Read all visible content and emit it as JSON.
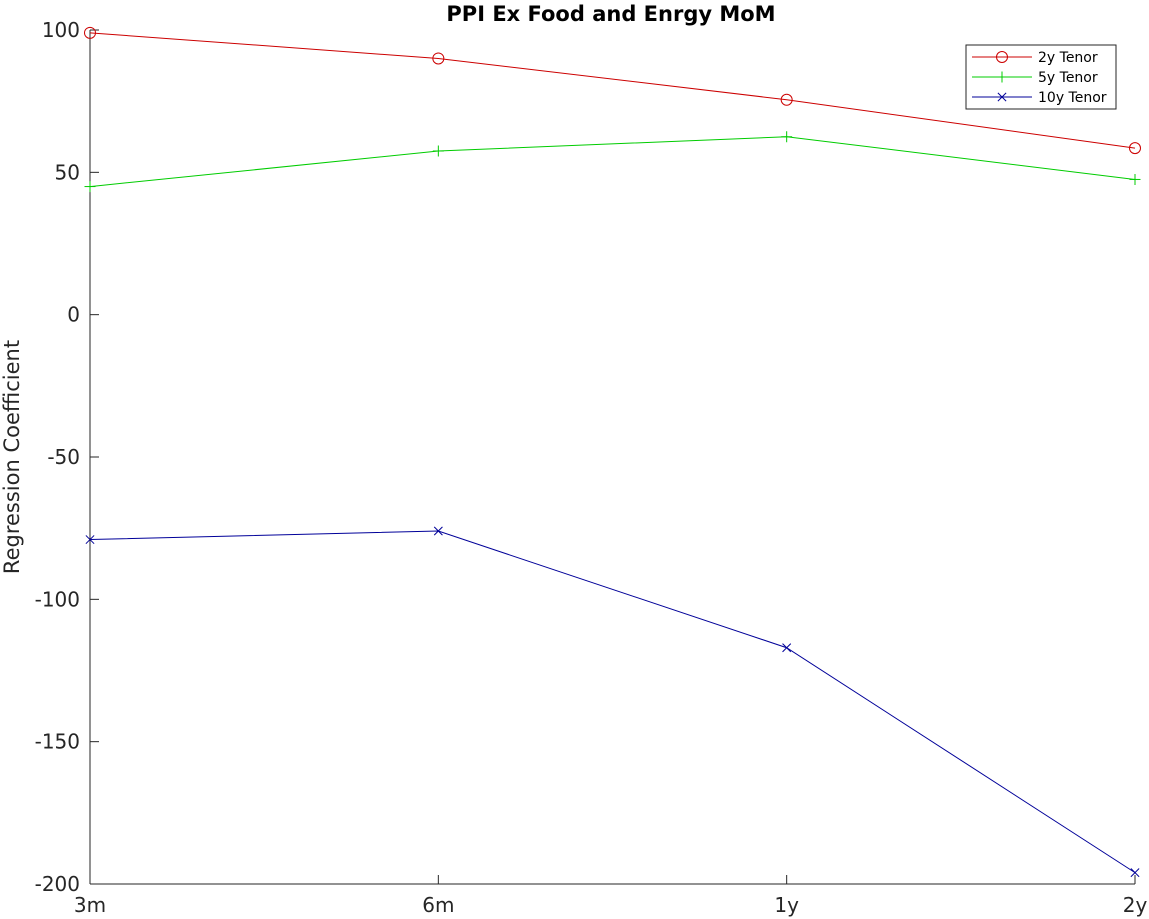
{
  "chart_data": {
    "type": "line",
    "title": "PPI Ex Food and Enrgy MoM",
    "xlabel": "",
    "ylabel": "Regression Coefficient",
    "categories": [
      "3m",
      "6m",
      "1y",
      "2y"
    ],
    "yticks": [
      100,
      50,
      0,
      -50,
      -100,
      -150,
      -200
    ],
    "ytick_labels": [
      "100",
      "50",
      "0",
      "-50",
      "-100",
      "-150",
      "-200"
    ],
    "ylim": [
      -200,
      100
    ],
    "grid": false,
    "legend_position": "top-right",
    "series": [
      {
        "name": "2y Tenor",
        "values": [
          99,
          90,
          75.5,
          58.5
        ],
        "color": "#cc0000",
        "marker": "circle"
      },
      {
        "name": "5y Tenor",
        "values": [
          45,
          57.5,
          62.5,
          47.5
        ],
        "color": "#00cc00",
        "marker": "plus"
      },
      {
        "name": "10y Tenor",
        "values": [
          -79,
          -76,
          -117,
          -196
        ],
        "color": "#000099",
        "marker": "cross"
      }
    ]
  }
}
